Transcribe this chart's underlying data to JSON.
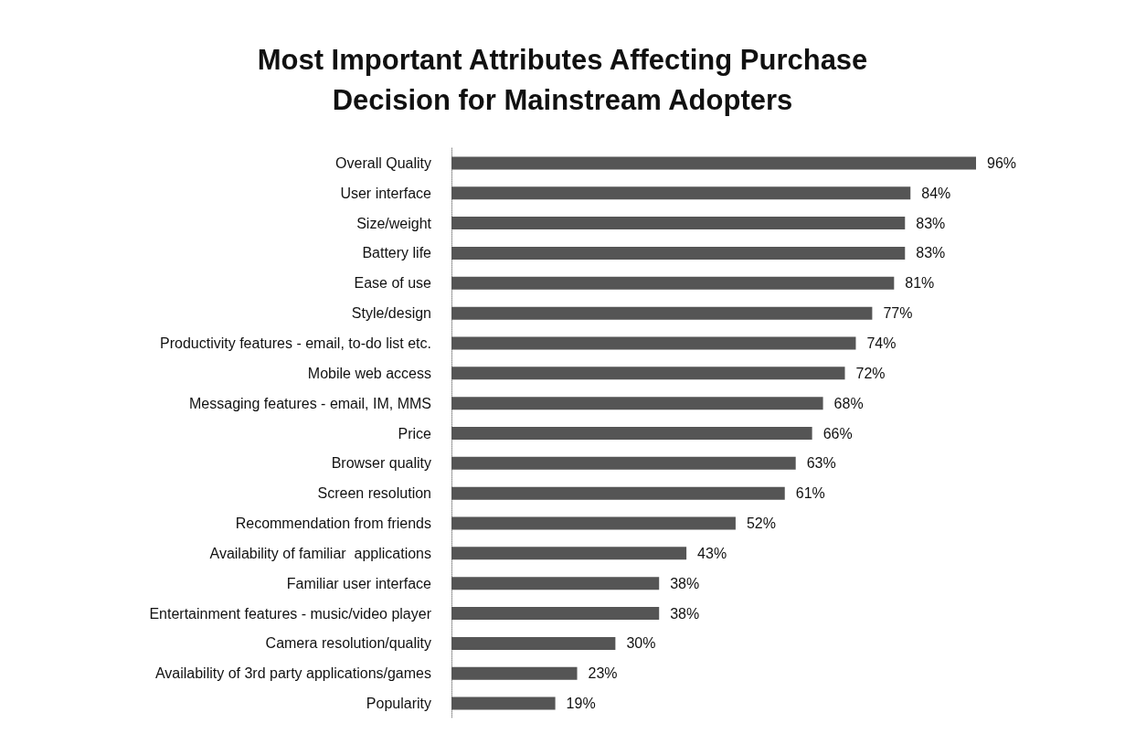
{
  "chart_data": {
    "type": "bar",
    "orientation": "horizontal",
    "title": "Most Important Attributes Affecting Purchase\nDecision for Mainstream Adopters",
    "categories": [
      "Overall Quality",
      "User interface",
      "Size/weight",
      "Battery life",
      "Ease of use",
      "Style/design",
      "Productivity features - email, to-do list etc.",
      "Mobile web access",
      "Messaging features - email, IM, MMS",
      "Price",
      "Browser quality",
      "Screen resolution",
      "Recommendation from friends",
      "Availability of familiar  applications",
      "Familiar user interface",
      "Entertainment features - music/video player",
      "Camera resolution/quality",
      "Availability of 3rd party applications/games",
      "Popularity"
    ],
    "values": [
      96,
      84,
      83,
      83,
      81,
      77,
      74,
      72,
      68,
      66,
      63,
      61,
      52,
      43,
      38,
      38,
      30,
      23,
      19
    ],
    "value_labels": [
      "96%",
      "84%",
      "83%",
      "83%",
      "81%",
      "77%",
      "74%",
      "72%",
      "68%",
      "66%",
      "63%",
      "61%",
      "52%",
      "43%",
      "38%",
      "38%",
      "30%",
      "23%",
      "19%"
    ],
    "color": "#555555"
  }
}
